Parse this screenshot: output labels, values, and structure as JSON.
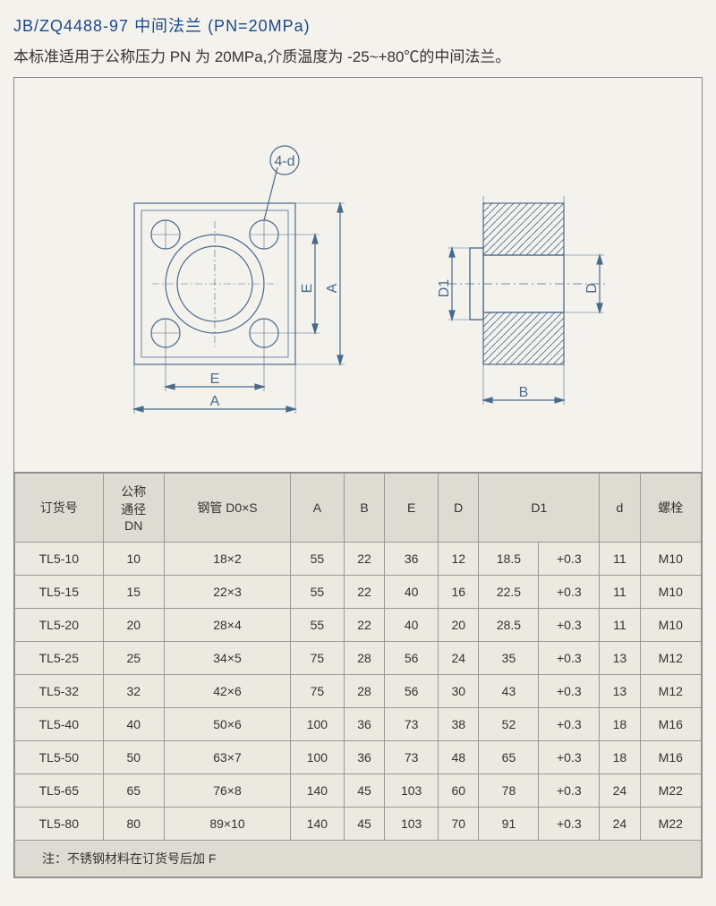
{
  "header": {
    "title": "JB/ZQ4488-97 中间法兰 (PN=20MPa)",
    "subtitle": "本标准适用于公称压力 PN 为 20MPa,介质温度为 -25~+80℃的中间法兰。"
  },
  "diagram": {
    "callout": "4-d",
    "front_labels": {
      "A_h": "A",
      "A_v": "A",
      "E_h": "E",
      "E_v": "E"
    },
    "side_labels": {
      "D": "D",
      "D1": "D1",
      "B": "B"
    },
    "stroke": "#4a6a8a",
    "stroke_width": 1.2
  },
  "table": {
    "headers": [
      "订货号",
      "公称通径DN",
      "钢管 D0×S",
      "A",
      "B",
      "E",
      "D",
      "D1",
      "",
      "d",
      "螺栓"
    ],
    "d1_span": 2,
    "rows": [
      [
        "TL5-10",
        "10",
        "18×2",
        "55",
        "22",
        "36",
        "12",
        "18.5",
        "+0.3",
        "11",
        "M10"
      ],
      [
        "TL5-15",
        "15",
        "22×3",
        "55",
        "22",
        "40",
        "16",
        "22.5",
        "+0.3",
        "11",
        "M10"
      ],
      [
        "TL5-20",
        "20",
        "28×4",
        "55",
        "22",
        "40",
        "20",
        "28.5",
        "+0.3",
        "11",
        "M10"
      ],
      [
        "TL5-25",
        "25",
        "34×5",
        "75",
        "28",
        "56",
        "24",
        "35",
        "+0.3",
        "13",
        "M12"
      ],
      [
        "TL5-32",
        "32",
        "42×6",
        "75",
        "28",
        "56",
        "30",
        "43",
        "+0.3",
        "13",
        "M12"
      ],
      [
        "TL5-40",
        "40",
        "50×6",
        "100",
        "36",
        "73",
        "38",
        "52",
        "+0.3",
        "18",
        "M16"
      ],
      [
        "TL5-50",
        "50",
        "63×7",
        "100",
        "36",
        "73",
        "48",
        "65",
        "+0.3",
        "18",
        "M16"
      ],
      [
        "TL5-65",
        "65",
        "76×8",
        "140",
        "45",
        "103",
        "60",
        "78",
        "+0.3",
        "24",
        "M22"
      ],
      [
        "TL5-80",
        "80",
        "89×10",
        "140",
        "45",
        "103",
        "70",
        "91",
        "+0.3",
        "24",
        "M22"
      ]
    ],
    "note": "注：不锈钢材料在订货号后加 F"
  }
}
